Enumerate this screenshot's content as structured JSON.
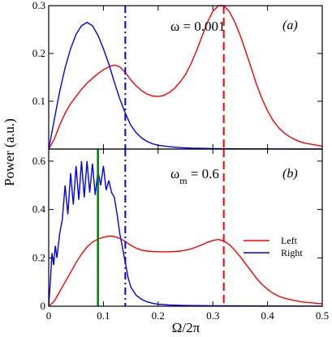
{
  "chart_data": [
    {
      "panel_label": "(a)",
      "annotation": "ω = 0.001",
      "type": "line",
      "xlim": [
        0,
        0.5
      ],
      "ylim": [
        0,
        0.3
      ],
      "xticks": [
        0,
        0.1,
        0.2,
        0.3,
        0.4,
        0.5
      ],
      "yticks": [
        0.1,
        0.2,
        0.3
      ],
      "ytick_labels": [
        "0.1",
        "0.2",
        "0.3"
      ],
      "series": [
        {
          "color": "#ff0000",
          "x": [
            0.0,
            0.01,
            0.02,
            0.03,
            0.04,
            0.05,
            0.06,
            0.07,
            0.08,
            0.09,
            0.1,
            0.11,
            0.12,
            0.13,
            0.14,
            0.15,
            0.16,
            0.17,
            0.18,
            0.19,
            0.2,
            0.21,
            0.22,
            0.23,
            0.24,
            0.25,
            0.26,
            0.27,
            0.28,
            0.29,
            0.3,
            0.31,
            0.32,
            0.33,
            0.34,
            0.35,
            0.36,
            0.37,
            0.38,
            0.39,
            0.4,
            0.41,
            0.42,
            0.43,
            0.44,
            0.45,
            0.46,
            0.47,
            0.48,
            0.49,
            0.5
          ],
          "y": [
            0.0,
            0.02,
            0.05,
            0.075,
            0.095,
            0.11,
            0.125,
            0.138,
            0.148,
            0.158,
            0.166,
            0.172,
            0.176,
            0.172,
            0.16,
            0.145,
            0.132,
            0.122,
            0.115,
            0.111,
            0.11,
            0.112,
            0.118,
            0.127,
            0.14,
            0.156,
            0.178,
            0.205,
            0.235,
            0.265,
            0.288,
            0.3,
            0.3,
            0.288,
            0.266,
            0.238,
            0.205,
            0.17,
            0.135,
            0.105,
            0.08,
            0.06,
            0.045,
            0.034,
            0.026,
            0.02,
            0.015,
            0.012,
            0.01,
            0.008,
            0.006
          ]
        },
        {
          "color": "#0000ff",
          "x": [
            0.0,
            0.005,
            0.01,
            0.015,
            0.02,
            0.03,
            0.04,
            0.05,
            0.06,
            0.07,
            0.08,
            0.09,
            0.1,
            0.11,
            0.12,
            0.13,
            0.14,
            0.15,
            0.16,
            0.17,
            0.18,
            0.19,
            0.2,
            0.22,
            0.24,
            0.26,
            0.28,
            0.3,
            0.35,
            0.4,
            0.45,
            0.5
          ],
          "y": [
            0.0,
            0.03,
            0.06,
            0.09,
            0.12,
            0.17,
            0.21,
            0.24,
            0.258,
            0.265,
            0.258,
            0.238,
            0.21,
            0.178,
            0.14,
            0.105,
            0.075,
            0.05,
            0.034,
            0.023,
            0.016,
            0.011,
            0.008,
            0.005,
            0.003,
            0.002,
            0.0015,
            0.001,
            0.0005,
            0.0003,
            0.0002,
            0.0001
          ]
        }
      ],
      "vlines": [
        {
          "x": 0.14,
          "color": "#0000ff",
          "style": "dashdot"
        },
        {
          "x": 0.32,
          "color": "#ff0000",
          "style": "dashed"
        }
      ]
    },
    {
      "panel_label": "(b)",
      "annotation_base": "ω",
      "annotation_sub": "m",
      "annotation_value": " = 0.6",
      "type": "line",
      "xlim": [
        0,
        0.5
      ],
      "ylim": [
        0,
        0.65
      ],
      "xticks": [
        0,
        0.1,
        0.2,
        0.3,
        0.4,
        0.5
      ],
      "xtick_labels": [
        "0",
        "0.1",
        "0.2",
        "0.3",
        "0.4",
        "0.5"
      ],
      "yticks": [
        0,
        0.2,
        0.4,
        0.6
      ],
      "ytick_labels": [
        "0",
        "0.2",
        "0.4",
        "0.6"
      ],
      "xlabel": "Ω/2π",
      "ylabel": "Power (a.u.)",
      "legend": {
        "placement": "right",
        "entries": [
          "Left",
          "Right"
        ]
      },
      "series": [
        {
          "name": "Left",
          "color": "#ff0000",
          "x": [
            0.0,
            0.01,
            0.02,
            0.03,
            0.04,
            0.05,
            0.06,
            0.07,
            0.08,
            0.09,
            0.1,
            0.11,
            0.12,
            0.13,
            0.14,
            0.15,
            0.16,
            0.17,
            0.18,
            0.19,
            0.2,
            0.21,
            0.22,
            0.23,
            0.24,
            0.25,
            0.26,
            0.27,
            0.28,
            0.29,
            0.3,
            0.31,
            0.32,
            0.33,
            0.34,
            0.35,
            0.36,
            0.37,
            0.38,
            0.39,
            0.4,
            0.41,
            0.42,
            0.43,
            0.44,
            0.45,
            0.46,
            0.47,
            0.48,
            0.49,
            0.5
          ],
          "y": [
            0.0,
            0.02,
            0.06,
            0.1,
            0.14,
            0.18,
            0.215,
            0.245,
            0.265,
            0.278,
            0.285,
            0.29,
            0.288,
            0.28,
            0.268,
            0.252,
            0.24,
            0.232,
            0.228,
            0.226,
            0.225,
            0.225,
            0.225,
            0.226,
            0.228,
            0.232,
            0.237,
            0.245,
            0.254,
            0.264,
            0.272,
            0.276,
            0.27,
            0.255,
            0.232,
            0.205,
            0.175,
            0.145,
            0.115,
            0.09,
            0.07,
            0.054,
            0.042,
            0.034,
            0.028,
            0.023,
            0.019,
            0.016,
            0.014,
            0.012,
            0.01
          ]
        },
        {
          "name": "Right",
          "color": "#0000ff",
          "x": [
            0.0,
            0.003,
            0.006,
            0.009,
            0.012,
            0.015,
            0.02,
            0.025,
            0.03,
            0.035,
            0.04,
            0.045,
            0.05,
            0.055,
            0.06,
            0.065,
            0.07,
            0.075,
            0.08,
            0.085,
            0.09,
            0.095,
            0.1,
            0.105,
            0.11,
            0.115,
            0.12,
            0.125,
            0.13,
            0.135,
            0.14,
            0.145,
            0.15,
            0.16,
            0.17,
            0.18,
            0.19,
            0.2,
            0.22,
            0.25,
            0.3,
            0.4,
            0.5
          ],
          "y": [
            0.0,
            0.1,
            0.22,
            0.17,
            0.25,
            0.2,
            0.3,
            0.36,
            0.5,
            0.38,
            0.55,
            0.42,
            0.58,
            0.44,
            0.6,
            0.45,
            0.6,
            0.47,
            0.59,
            0.46,
            0.56,
            0.5,
            0.58,
            0.48,
            0.52,
            0.47,
            0.45,
            0.38,
            0.3,
            0.24,
            0.18,
            0.12,
            0.08,
            0.045,
            0.028,
            0.018,
            0.012,
            0.008,
            0.005,
            0.003,
            0.002,
            0.001,
            0.0005
          ]
        }
      ],
      "vlines": [
        {
          "x": 0.09,
          "color": "#008000",
          "style": "solid"
        },
        {
          "x": 0.14,
          "color": "#0000ff",
          "style": "dashdot"
        },
        {
          "x": 0.32,
          "color": "#ff0000",
          "style": "dashed"
        }
      ]
    }
  ]
}
